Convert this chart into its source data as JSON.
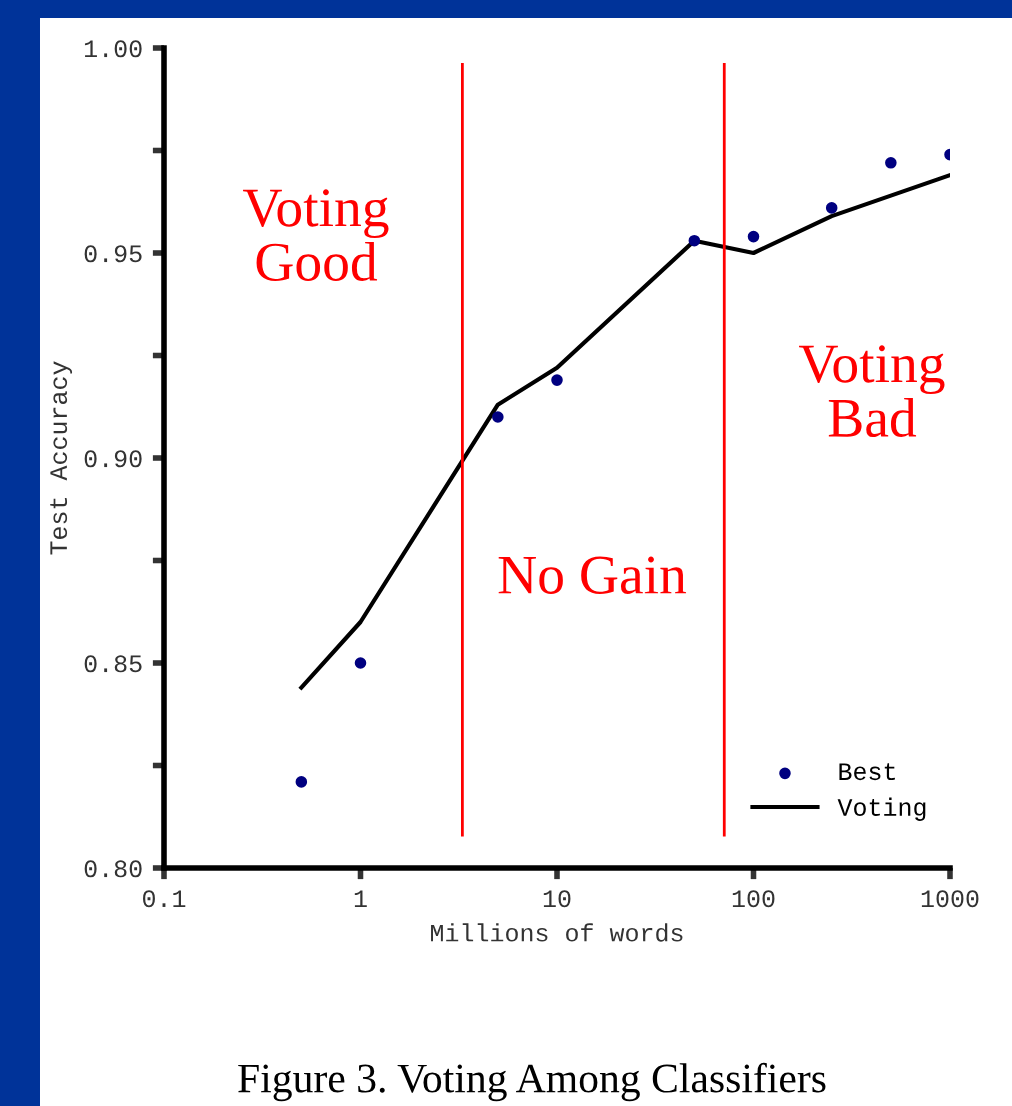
{
  "chart_data": {
    "type": "scatter",
    "xlabel": "Millions of words",
    "ylabel": "Test Accuracy",
    "log": "x",
    "xlim": [
      0.1,
      1000
    ],
    "xticks": [
      0.1,
      1,
      10,
      100,
      1000
    ],
    "ylim": [
      0.8,
      1.0
    ],
    "yticks": [
      {
        "value": 0.8,
        "label": "0.80"
      },
      {
        "value": 0.825,
        "label": null
      },
      {
        "value": 0.85,
        "label": "0.85"
      },
      {
        "value": 0.875,
        "label": null
      },
      {
        "value": 0.9,
        "label": "0.90"
      },
      {
        "value": 0.925,
        "label": null
      },
      {
        "value": 0.95,
        "label": "0.95"
      },
      {
        "value": 0.975,
        "label": null
      },
      {
        "value": 1.0,
        "label": "1.00"
      }
    ],
    "grid": false,
    "legend": "bottom right",
    "series": [
      {
        "name": "Best",
        "marker": "circle",
        "color": "#000080",
        "x": [
          0.5,
          1,
          5,
          10,
          50,
          100,
          250,
          500,
          1000
        ],
        "values": [
          0.821,
          0.85,
          0.91,
          0.919,
          0.953,
          0.954,
          0.961,
          0.972,
          0.974
        ]
      },
      {
        "name": "Voting",
        "type": "line",
        "marker": "none",
        "line_style": "solid",
        "color": "#000000",
        "x": [
          0.5,
          1,
          5,
          10,
          50,
          100,
          250,
          500,
          1000
        ],
        "values": [
          0.844,
          0.86,
          0.913,
          0.922,
          0.953,
          0.95,
          0.959,
          0.964,
          0.969
        ]
      }
    ],
    "ref_lines": [
      {
        "axis": "x",
        "value": 3.3,
        "color": "#ff0000"
      },
      {
        "axis": "x",
        "value": 71,
        "color": "#ff0000"
      }
    ],
    "annotations": [
      "Voting\nGood",
      "No Gain",
      "Voting\nBad",
      "Figure 3. Voting Among Classifiers"
    ]
  }
}
